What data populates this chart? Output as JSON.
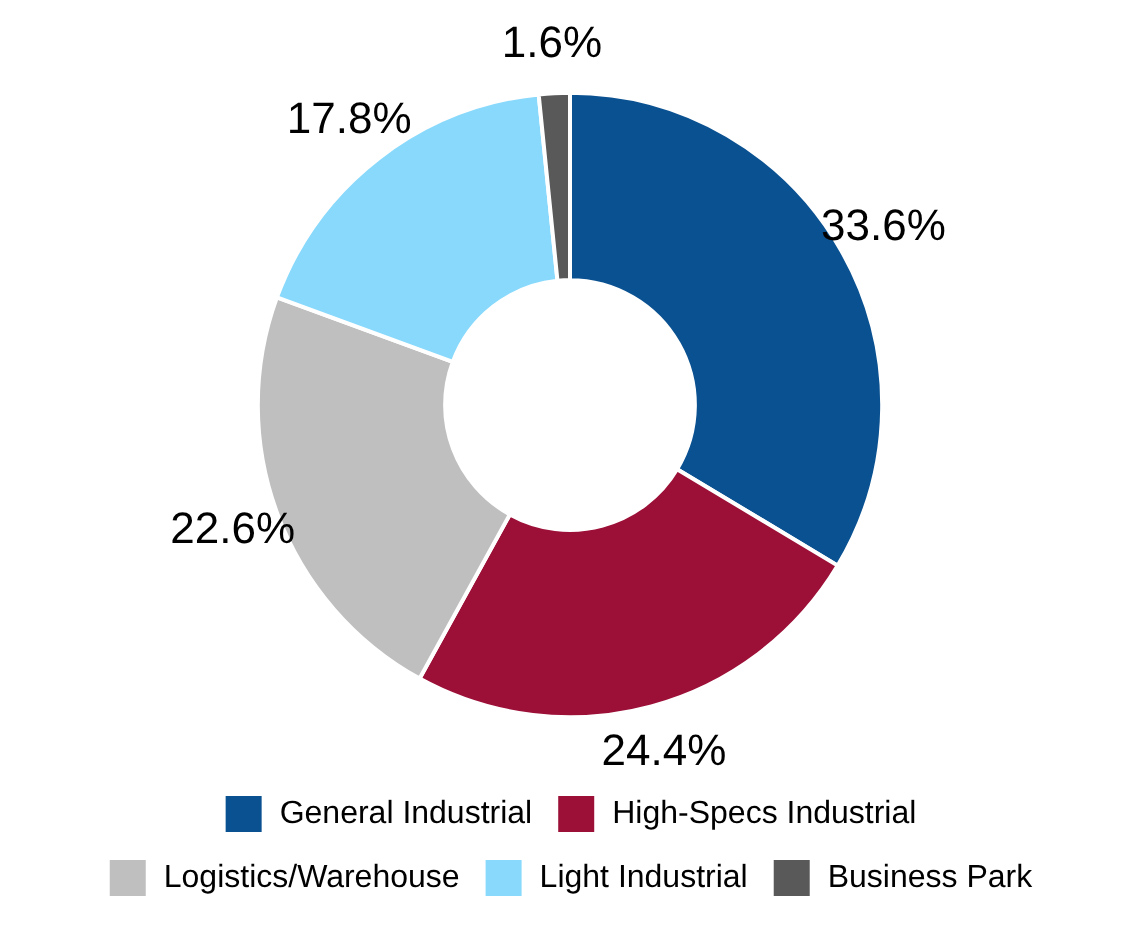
{
  "chart_data": {
    "type": "donut",
    "categories": [
      "General Industrial",
      "High-Specs Industrial",
      "Logistics/Warehouse",
      "Light Industrial",
      "Business Park"
    ],
    "values": [
      33.6,
      24.4,
      22.6,
      17.8,
      1.6
    ],
    "value_labels": [
      "33.6%",
      "24.4%",
      "22.6%",
      "17.8%",
      "1.6%"
    ],
    "colors": [
      "#0a5191",
      "#9c0f37",
      "#bfbfbf",
      "#88d9fc",
      "#595959"
    ],
    "legend": "bottom"
  }
}
